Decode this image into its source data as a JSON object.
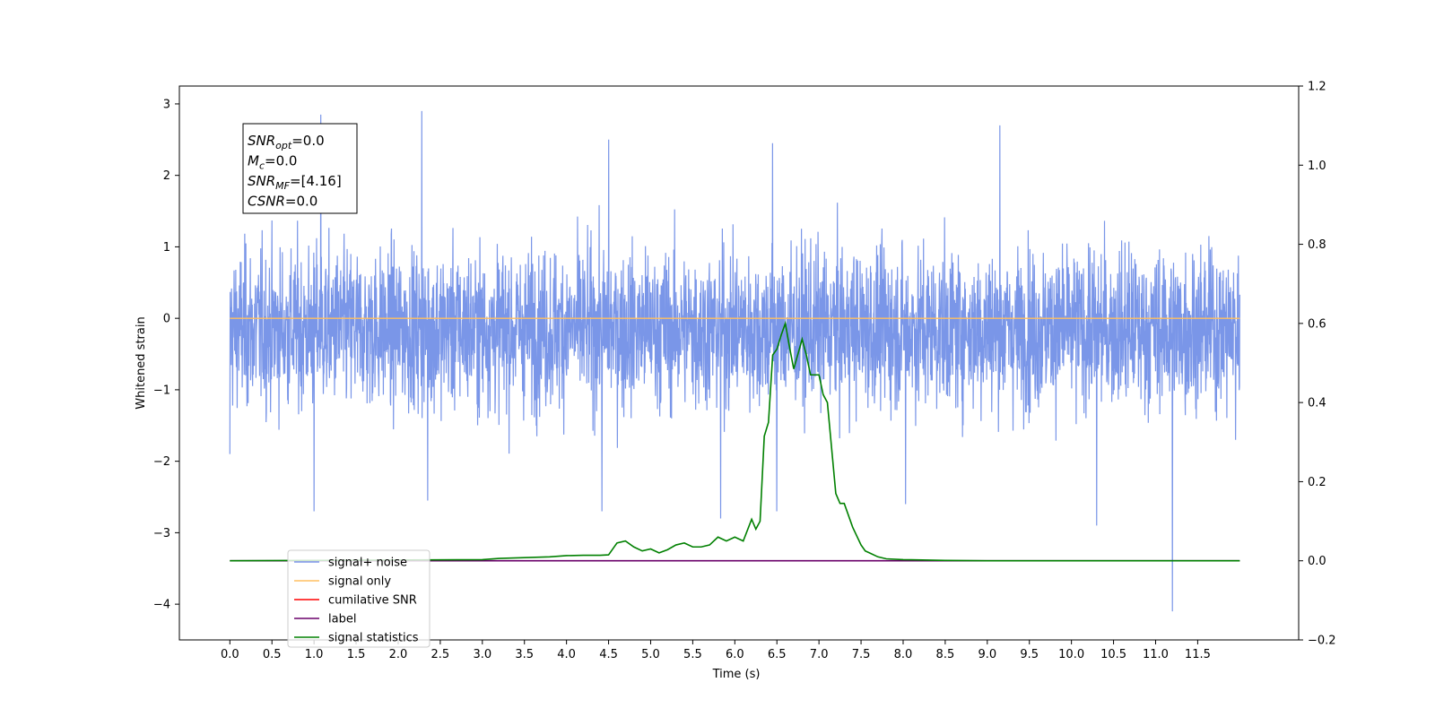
{
  "chart_data": {
    "type": "line",
    "xlabel": "Time (s)",
    "ylabel": "Whitened strain",
    "xlim": [
      -0.6,
      12.7
    ],
    "ylim": [
      -4.5,
      3.25
    ],
    "y2lim": [
      -0.2,
      1.2
    ],
    "grid": false,
    "legend_position": "lower-left",
    "x_ticks": [
      "0.0",
      "0.5",
      "1.0",
      "1.5",
      "2.0",
      "2.5",
      "3.0",
      "3.5",
      "4.0",
      "4.5",
      "5.0",
      "5.5",
      "6.0",
      "6.5",
      "7.0",
      "7.5",
      "8.0",
      "8.5",
      "9.0",
      "9.5",
      "10.0",
      "10.5",
      "11.0",
      "11.5"
    ],
    "y_ticks": [
      "3",
      "2",
      "1",
      "0",
      "−1",
      "−2",
      "−3",
      "−4"
    ],
    "y2_ticks": [
      "1.2",
      "1.0",
      "0.8",
      "0.6",
      "0.4",
      "0.2",
      "0.0",
      "−0.2"
    ],
    "annotation": {
      "lines": [
        {
          "base": "SNR",
          "sub": "opt",
          "rest": "=0.0"
        },
        {
          "base": "M",
          "sub": "c",
          "rest": "=0.0"
        },
        {
          "base": "SNR",
          "sub": "MF",
          "rest": "=[4.16]"
        },
        {
          "base": "CSNR",
          "sub": "",
          "rest": "=0.0"
        }
      ]
    },
    "series": [
      {
        "name": "signal+ noise",
        "color": "#7a96e8",
        "axis": "left",
        "x_range": [
          0.0,
          12.0
        ],
        "envelope": {
          "typical_upper": 1.1,
          "typical_lower": -1.4
        },
        "peaks": [
          [
            1.08,
            2.85
          ],
          [
            2.28,
            2.9
          ],
          [
            4.5,
            2.5
          ],
          [
            6.45,
            2.45
          ],
          [
            9.15,
            2.7
          ],
          [
            1.0,
            -2.7
          ],
          [
            2.35,
            -2.55
          ],
          [
            4.42,
            -2.7
          ],
          [
            5.83,
            -2.8
          ],
          [
            6.5,
            -2.7
          ],
          [
            8.03,
            -2.6
          ],
          [
            10.3,
            -2.9
          ],
          [
            11.2,
            -4.1
          ],
          [
            0.0,
            -1.9
          ],
          [
            11.95,
            -1.7
          ]
        ]
      },
      {
        "name": "signal only",
        "color": "#ffbf60",
        "axis": "left",
        "x": [
          0.0,
          12.0
        ],
        "y": [
          0.0,
          0.0
        ]
      },
      {
        "name": "cumilative SNR",
        "color": "#ff0000",
        "axis": "right",
        "x": [],
        "y": []
      },
      {
        "name": "label",
        "color": "#6a006a",
        "axis": "right",
        "x": [
          0.0,
          12.0
        ],
        "y": [
          0.0,
          0.0
        ]
      },
      {
        "name": "signal statistics",
        "color": "#008000",
        "axis": "right",
        "x": [
          0.0,
          3.0,
          3.2,
          3.5,
          3.8,
          4.0,
          4.2,
          4.4,
          4.5,
          4.6,
          4.7,
          4.8,
          4.9,
          5.0,
          5.1,
          5.2,
          5.3,
          5.4,
          5.5,
          5.6,
          5.7,
          5.8,
          5.9,
          6.0,
          6.1,
          6.2,
          6.25,
          6.3,
          6.35,
          6.4,
          6.45,
          6.5,
          6.55,
          6.6,
          6.65,
          6.7,
          6.8,
          6.85,
          6.9,
          7.0,
          7.05,
          7.1,
          7.2,
          7.25,
          7.3,
          7.4,
          7.5,
          7.55,
          7.6,
          7.7,
          7.8,
          8.0,
          8.5,
          9.0,
          12.0
        ],
        "y": [
          0.0,
          0.003,
          0.006,
          0.008,
          0.01,
          0.013,
          0.014,
          0.014,
          0.015,
          0.045,
          0.05,
          0.035,
          0.025,
          0.03,
          0.02,
          0.028,
          0.04,
          0.045,
          0.035,
          0.035,
          0.04,
          0.06,
          0.05,
          0.06,
          0.05,
          0.105,
          0.08,
          0.1,
          0.315,
          0.35,
          0.52,
          0.535,
          0.57,
          0.6,
          0.54,
          0.485,
          0.56,
          0.52,
          0.47,
          0.47,
          0.42,
          0.4,
          0.17,
          0.145,
          0.145,
          0.085,
          0.04,
          0.025,
          0.02,
          0.01,
          0.005,
          0.003,
          0.001,
          0.0,
          0.0
        ]
      }
    ]
  }
}
